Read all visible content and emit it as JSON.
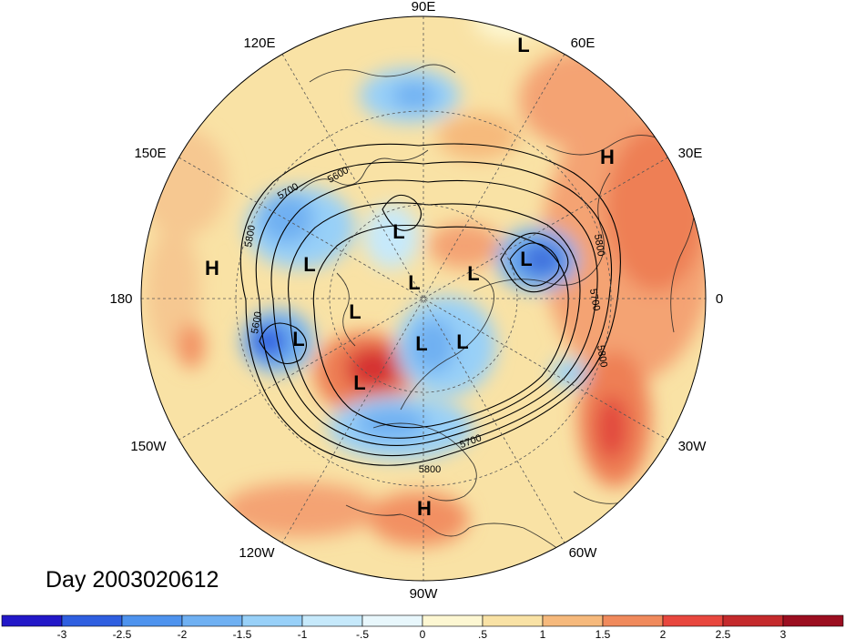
{
  "map": {
    "date_label": "Day 2003020612",
    "lon_labels": [
      "90E",
      "60E",
      "30E",
      "0",
      "30W",
      "60W",
      "90W",
      "120W",
      "150W",
      "180",
      "150E",
      "120E"
    ],
    "systems": [
      "L",
      "H",
      "H",
      "L",
      "L",
      "L",
      "L",
      "L",
      "L",
      "L",
      "L",
      "L",
      "L",
      "H",
      "H"
    ],
    "contour_labels": [
      "5600",
      "5700",
      "5800",
      "5600",
      "5800",
      "5700",
      "5800",
      "5700",
      "5800"
    ]
  },
  "colorbar": {
    "ticks": [
      "-3",
      "-2.5",
      "-2",
      "-1.5",
      "-1",
      "-.5",
      "0",
      ".5",
      "1",
      "1.5",
      "2",
      "2.5",
      "3"
    ],
    "colors": [
      "#2318c8",
      "#2f5fe0",
      "#4e93ee",
      "#6fb0f2",
      "#98d0f8",
      "#c6e9fb",
      "#e8f7fc",
      "#fdf7d2",
      "#f9e2a5",
      "#f6b97c",
      "#f08a5c",
      "#e8473e",
      "#c42a2c",
      "#9b0e20"
    ]
  },
  "colors": {
    "ocean_anomaly": "#f9e2a5",
    "warm_anomaly": "#f08a5c",
    "cold_anomaly": "#6fb0f2"
  }
}
